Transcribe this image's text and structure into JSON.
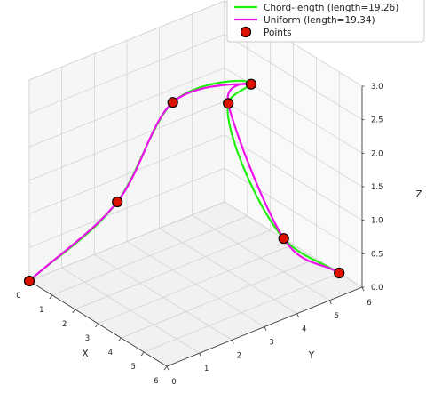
{
  "chart_data": {
    "type": "line",
    "projection": "3d",
    "xlabel": "X",
    "ylabel": "Y",
    "zlabel": "Z",
    "xlim": [
      0,
      6
    ],
    "ylim": [
      0,
      6
    ],
    "zlim": [
      0,
      3
    ],
    "x_ticks": [
      "0",
      "1",
      "2",
      "3",
      "4",
      "5",
      "6"
    ],
    "y_ticks": [
      "0",
      "1",
      "2",
      "3",
      "4",
      "5",
      "6"
    ],
    "z_ticks": [
      "0.0",
      "0.5",
      "1.0",
      "1.5",
      "2.0",
      "2.5",
      "3.0"
    ],
    "grid": true,
    "legend_position": "top-right",
    "points": [
      {
        "x": 0,
        "y": 0,
        "z": 0
      },
      {
        "x": 1,
        "y": 2,
        "z": 1
      },
      {
        "x": 2,
        "y": 3,
        "z": 2.5
      },
      {
        "x": 4,
        "y": 4,
        "z": 3
      },
      {
        "x": 3,
        "y": 4,
        "z": 2.5
      },
      {
        "x": 4,
        "y": 5,
        "z": 0.5
      },
      {
        "x": 5,
        "y": 6,
        "z": 0
      }
    ],
    "series": [
      {
        "name": "Chord-length (length=19.26)",
        "color": "#22ee11",
        "kind": "line",
        "parameterization": "chord"
      },
      {
        "name": "Uniform (length=19.34)",
        "color": "#ee11ee",
        "kind": "line",
        "parameterization": "uniform"
      },
      {
        "name": "Points",
        "color": "#dd1100",
        "edge_color": "#000000",
        "kind": "marker"
      }
    ]
  }
}
